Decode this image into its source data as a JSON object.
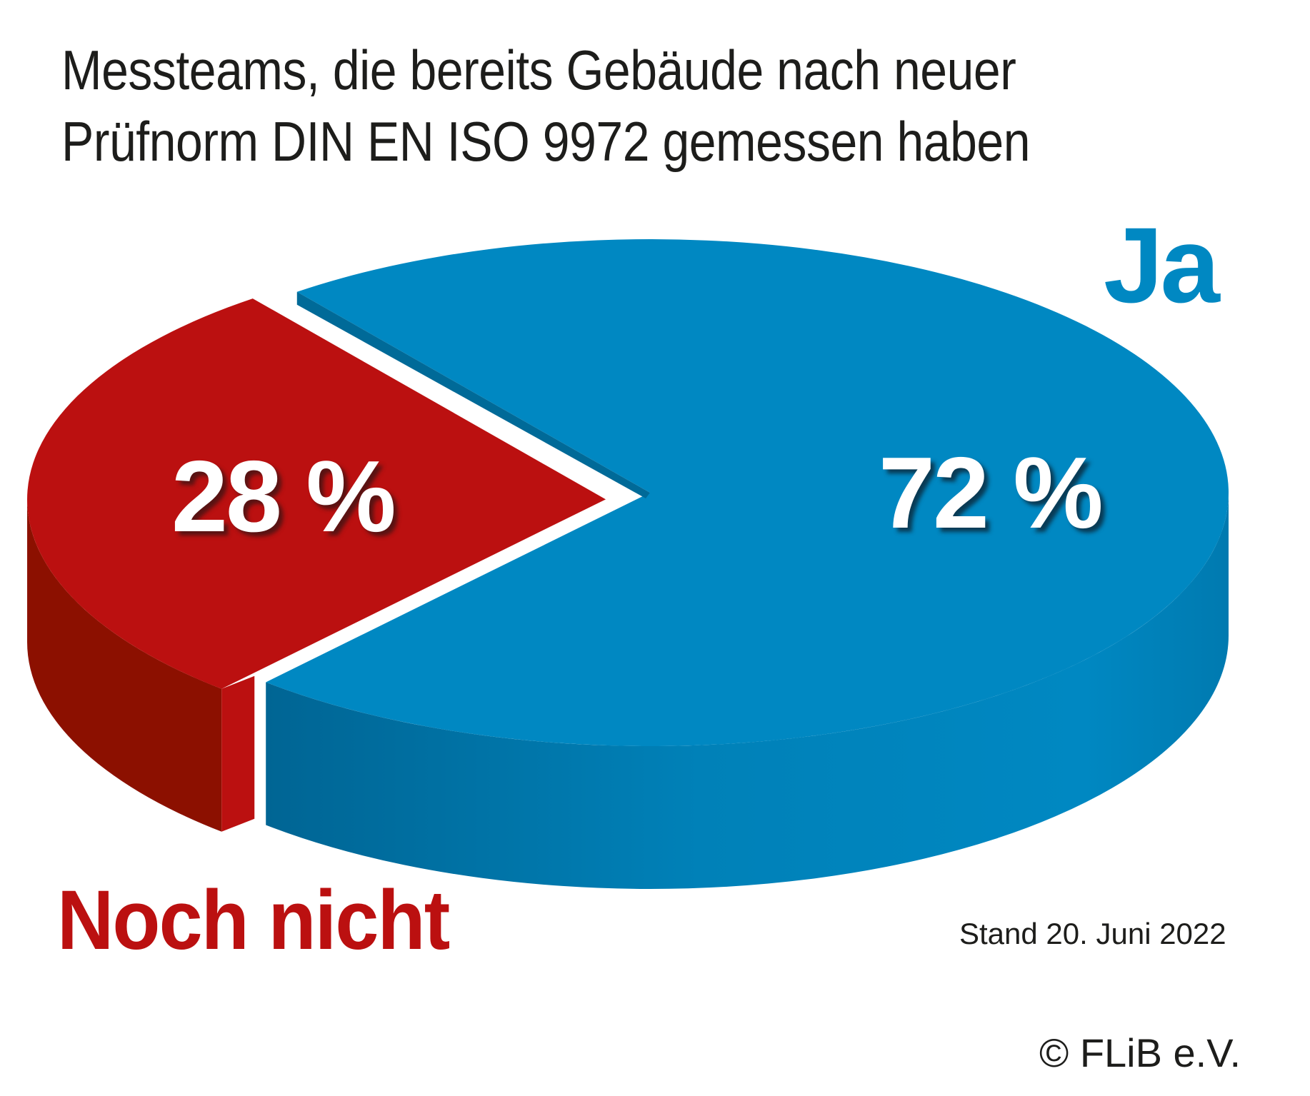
{
  "chart_data": {
    "type": "pie",
    "style": "3d",
    "title": "Messteams, die bereits Gebäude nach neuer Prüfnorm DIN EN ISO 9972 gemessen haben",
    "title_lines": [
      "Messteams, die bereits Gebäude nach neuer",
      "Prüfnorm DIN EN ISO 9972 gemessen haben"
    ],
    "slices": [
      {
        "name": "Ja",
        "value": 72,
        "label": "72 %",
        "color": "#0088c2",
        "side_color": "#006a98"
      },
      {
        "name": "Noch nicht",
        "value": 28,
        "label": "28 %",
        "color": "#bb1010",
        "side_color": "#8c1000",
        "exploded": true
      }
    ],
    "unit": "%",
    "annotations": [
      "Stand 20. Juni 2022",
      "© FLiB e.V."
    ]
  },
  "labels": {
    "ja": "Ja",
    "noch_nicht": "Noch nicht",
    "pct_ja": "72 %",
    "pct_noch_nicht": "28 %"
  },
  "footer": {
    "stand": "Stand 20. Juni 2022",
    "copyright": "© FLiB e.V."
  }
}
